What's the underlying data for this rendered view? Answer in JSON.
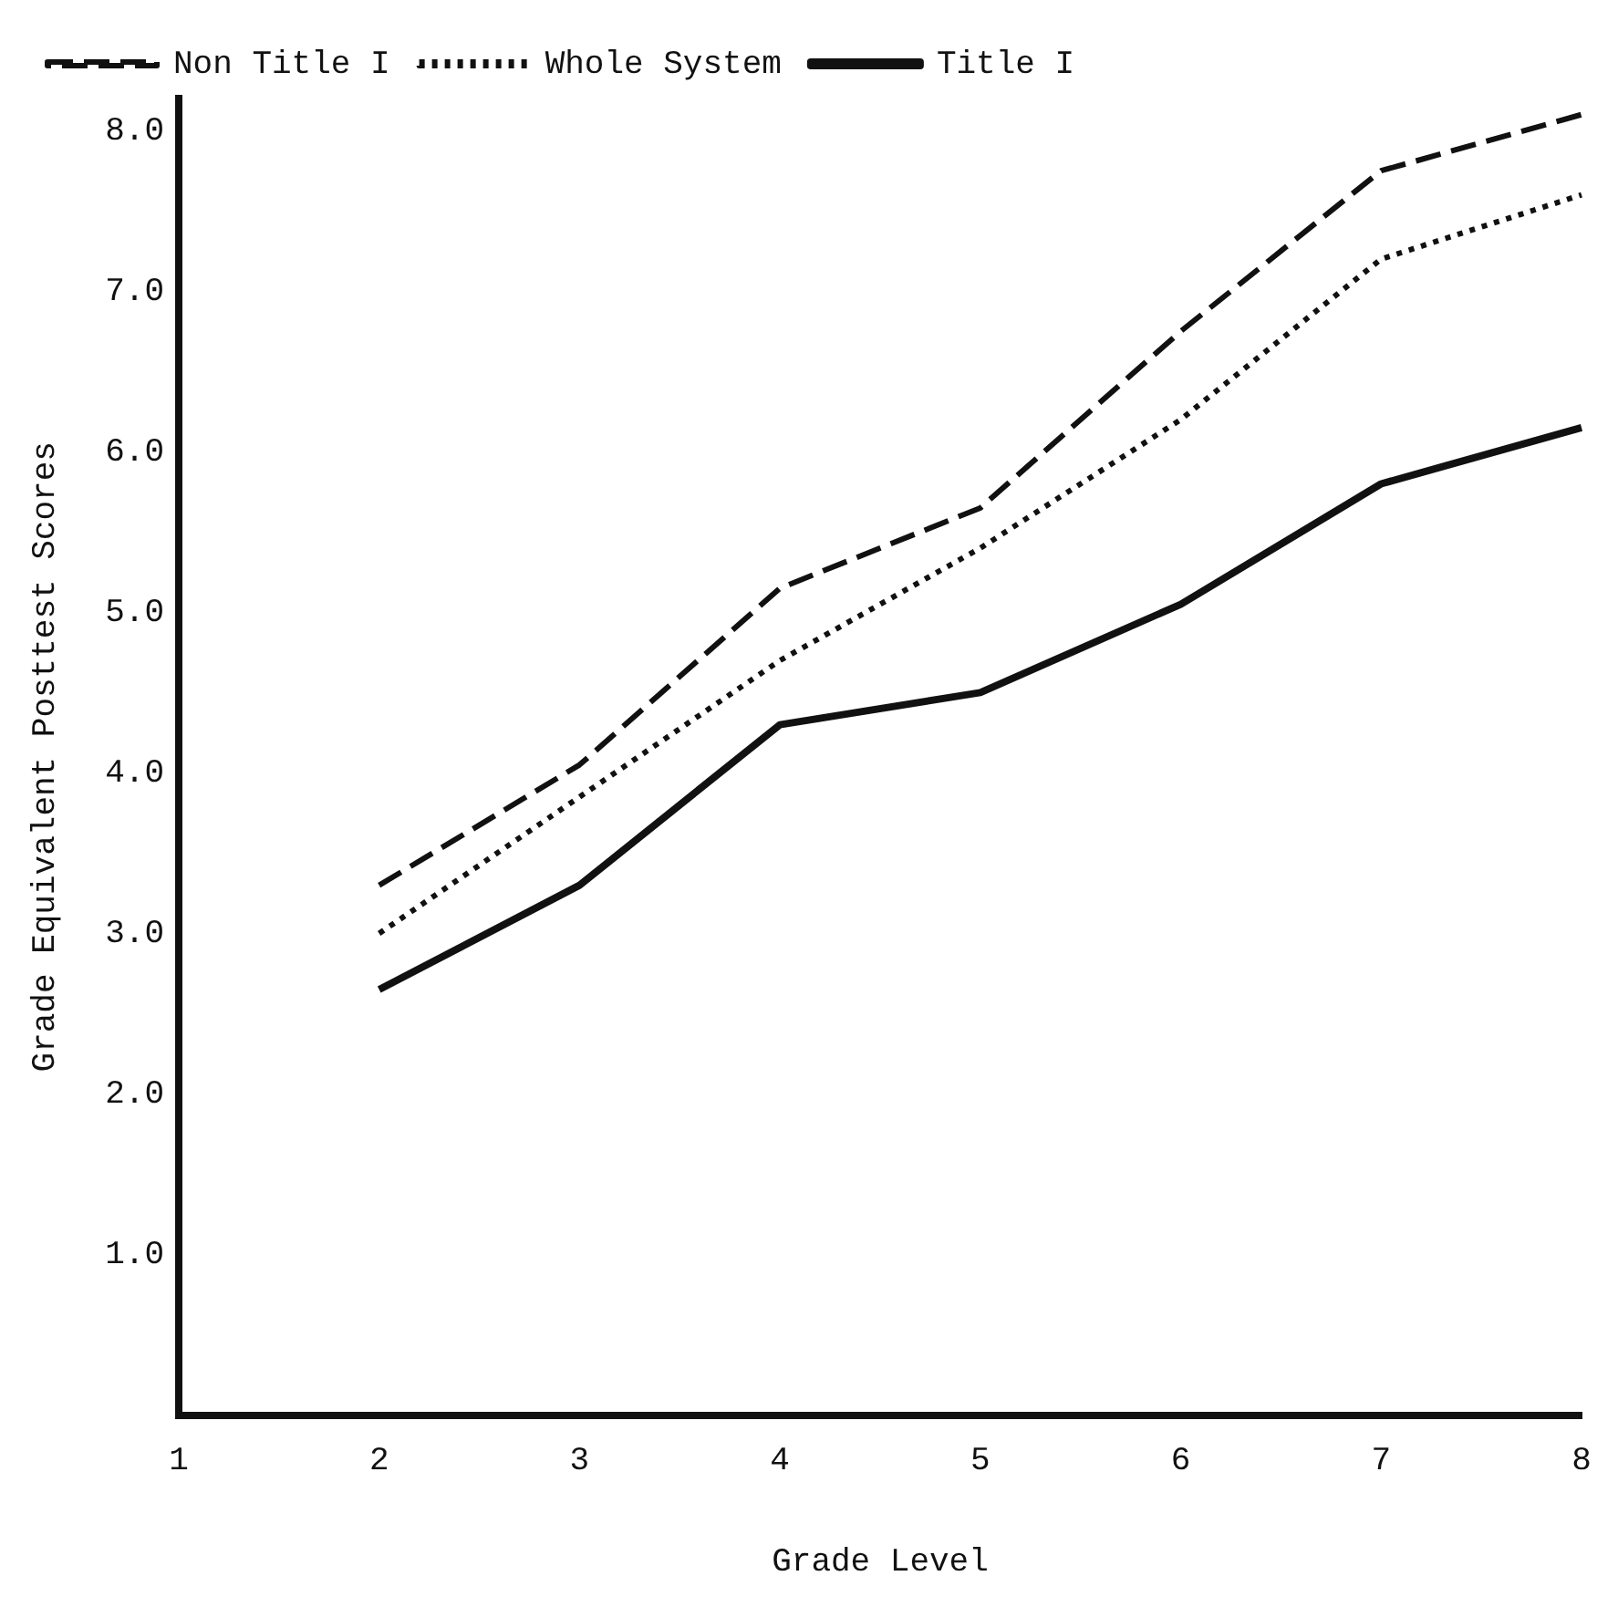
{
  "chart_data": {
    "type": "line",
    "xlabel": "Grade Level",
    "ylabel": "Grade Equivalent Posttest Scores",
    "categories": [
      "1",
      "2",
      "3",
      "4",
      "5",
      "6",
      "7",
      "8"
    ],
    "ylim": [
      0,
      8.2
    ],
    "yticks": [
      {
        "value": 1,
        "label": "1.0"
      },
      {
        "value": 2,
        "label": "2.0"
      },
      {
        "value": 3,
        "label": "3.0"
      },
      {
        "value": 4,
        "label": "4.0"
      },
      {
        "value": 5,
        "label": "5.0"
      },
      {
        "value": 6,
        "label": "6.0"
      },
      {
        "value": 7,
        "label": "7.0"
      },
      {
        "value": 8,
        "label": "8.0"
      }
    ],
    "grid": false,
    "legend": "top left",
    "marker": "none",
    "series": [
      {
        "name": "Non Title I",
        "color": "#111111",
        "line_style": "dashed",
        "values": [
          null,
          3.3,
          4.05,
          5.15,
          5.65,
          6.75,
          7.75,
          8.1
        ]
      },
      {
        "name": "Whole System",
        "color": "#111111",
        "line_style": "dotted",
        "values": [
          null,
          3.0,
          3.85,
          4.7,
          5.4,
          6.2,
          7.2,
          7.6
        ]
      },
      {
        "name": "Title I",
        "color": "#111111",
        "line_style": "solid",
        "values": [
          null,
          2.65,
          3.3,
          4.3,
          4.5,
          5.05,
          5.8,
          6.15
        ]
      }
    ]
  }
}
